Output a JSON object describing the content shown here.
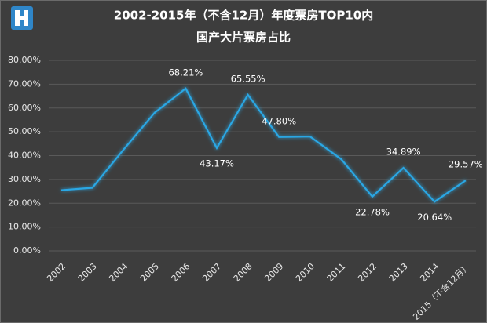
{
  "chart_data": {
    "type": "line",
    "title": "2002-2015年（不含12月）年度票房TOP10内",
    "subtitle": "国产大片票房占比",
    "categories": [
      "2002",
      "2003",
      "2004",
      "2005",
      "2006",
      "2007",
      "2008",
      "2009",
      "2010",
      "2011",
      "2012",
      "2013",
      "2014",
      "2015（不含12月）"
    ],
    "values": [
      25.5,
      26.5,
      42.5,
      58,
      68.21,
      43.17,
      65.55,
      47.8,
      48,
      38.5,
      22.78,
      34.89,
      20.64,
      29.57
    ],
    "value_labels": [
      null,
      null,
      null,
      null,
      "68.21%",
      "43.17%",
      "65.55%",
      "47.80%",
      null,
      null,
      "22.78%",
      "34.89%",
      "20.64%",
      "29.57%"
    ],
    "color": "#2aa7e4",
    "ylim": [
      0,
      80
    ],
    "yticks": [
      {
        "value": 0,
        "label": "0.00%"
      },
      {
        "value": 10,
        "label": "10.00%"
      },
      {
        "value": 20,
        "label": "20.00%"
      },
      {
        "value": 30,
        "label": "30.00%"
      },
      {
        "value": 40,
        "label": "40.00%"
      },
      {
        "value": 50,
        "label": "50.00%"
      },
      {
        "value": 60,
        "label": "60.00%"
      },
      {
        "value": 70,
        "label": "70.00%"
      },
      {
        "value": 80,
        "label": "80.00%"
      }
    ],
    "grid": true
  }
}
